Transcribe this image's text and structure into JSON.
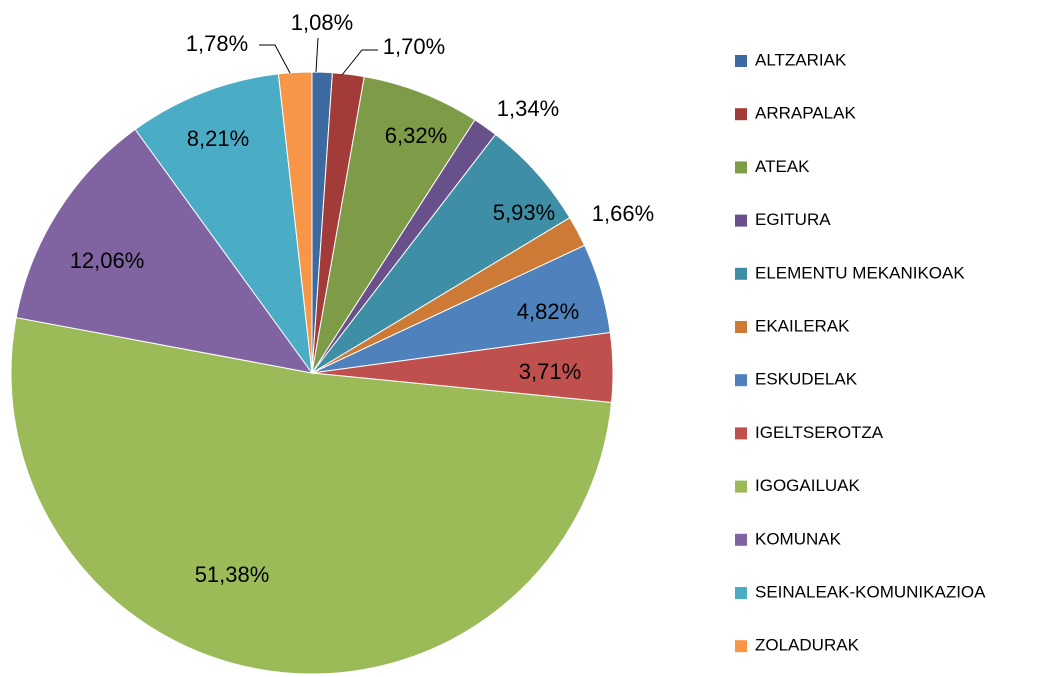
{
  "chart_data": {
    "type": "pie",
    "categories": [
      "ALTZARIAK",
      "ARRAPALAK",
      "ATEAK",
      "EGITURA",
      "ELEMENTU MEKANIKOAK",
      "EKAILERAK",
      "ESKUDELAK",
      "IGELTSEROTZA",
      "IGOGAILUAK",
      "KOMUNAK",
      "SEINALEAK-KOMUNIKAZIOA",
      "ZOLADURAK"
    ],
    "values": [
      1.08,
      1.7,
      6.32,
      1.34,
      5.93,
      1.66,
      4.82,
      3.71,
      51.38,
      12.06,
      8.21,
      1.78
    ],
    "value_labels": [
      "1,08%",
      "1,70%",
      "6,32%",
      "1,34%",
      "5,93%",
      "1,66%",
      "4,82%",
      "3,71%",
      "51,38%",
      "12,06%",
      "8,21%",
      "1,78%"
    ],
    "colors": [
      "#3c6aa1",
      "#a33b38",
      "#7e9b48",
      "#68508a",
      "#3e8fa6",
      "#cd7a37",
      "#4f81bd",
      "#c0504d",
      "#9bbb59",
      "#8064a2",
      "#4bacc6",
      "#f79646"
    ],
    "legend": "right"
  }
}
